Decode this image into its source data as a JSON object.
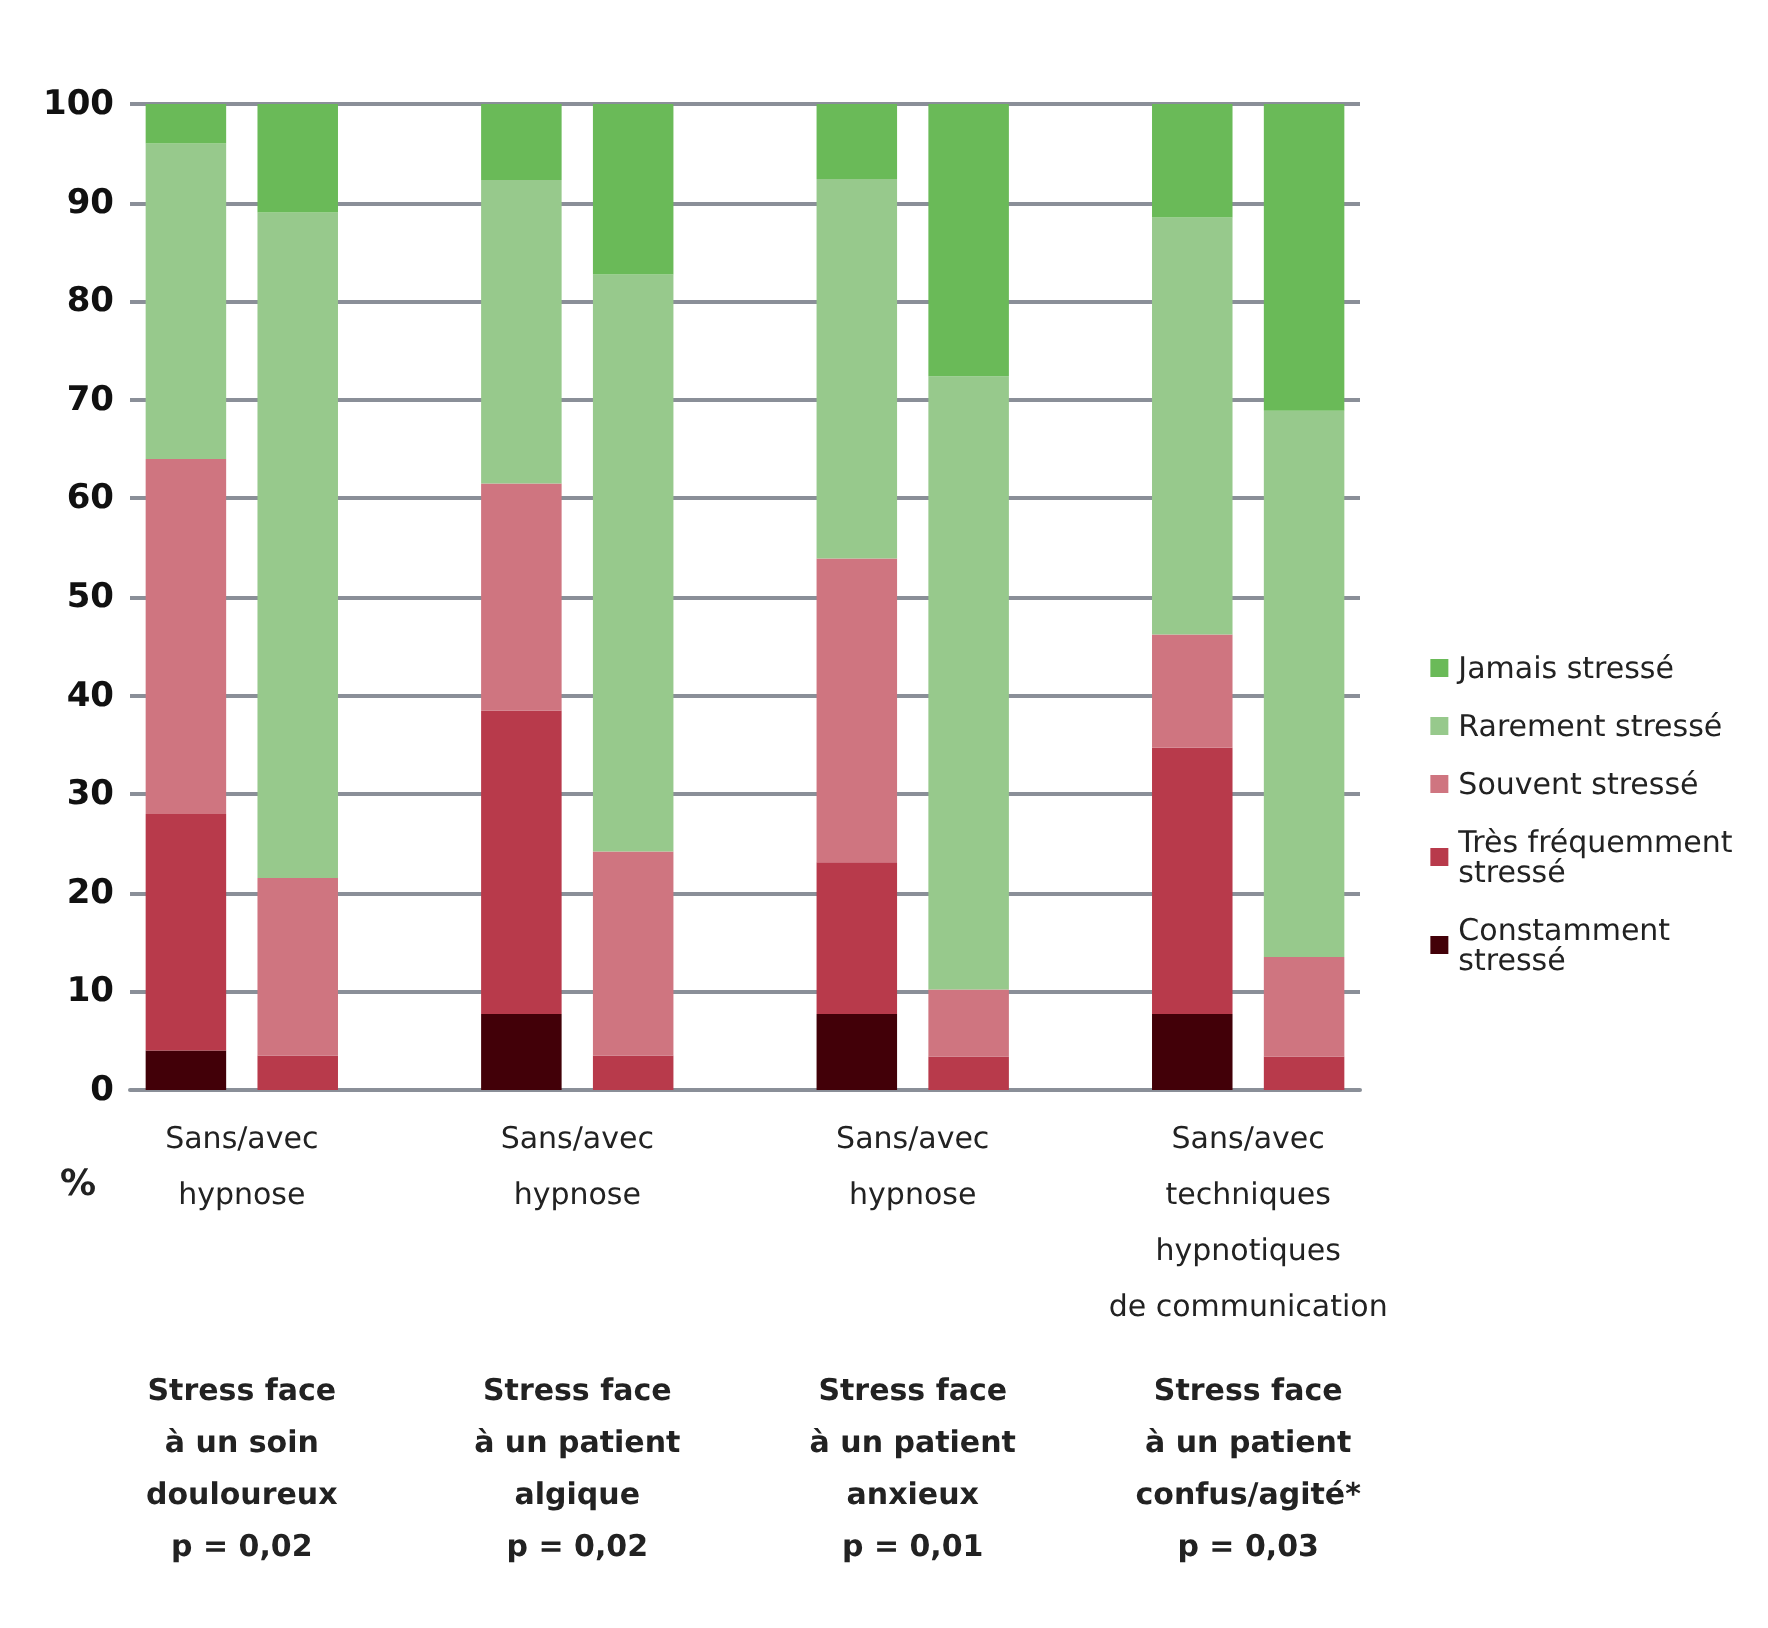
{
  "chart_data": {
    "type": "bar",
    "stacked": true,
    "ylabel": "%",
    "categories": [
      null,
      null,
      null,
      null,
      null,
      null,
      null,
      null,
      null,
      null,
      null
    ],
    "series": [
      {
        "name": "Constamment stressé",
        "color": "#420008",
        "values": [
          4,
          0,
          null,
          7.7,
          0,
          null,
          7.7,
          0,
          null,
          7.7,
          0
        ]
      },
      {
        "name": "Très fréquemment stressé",
        "color": "#b83a4b",
        "values": [
          24,
          3.5,
          null,
          30.8,
          3.5,
          null,
          15.4,
          3.4,
          null,
          27,
          3.4
        ]
      },
      {
        "name": "Souvent stressé",
        "color": "#cf7580",
        "values": [
          36,
          18,
          null,
          23,
          20.7,
          null,
          30.8,
          6.8,
          null,
          11.5,
          10.1
        ]
      },
      {
        "name": "Rarement stressé",
        "color": "#97c98c",
        "values": [
          32,
          67.5,
          null,
          30.8,
          58.5,
          null,
          38.5,
          62.2,
          null,
          42.3,
          55.4
        ]
      },
      {
        "name": "Jamais stressé",
        "color": "#6aba58",
        "values": [
          4,
          11,
          null,
          7.7,
          17.3,
          null,
          7.6,
          27.6,
          null,
          11.5,
          31.1
        ]
      }
    ],
    "ylim": [
      0,
      100
    ],
    "yticks": [
      0,
      10,
      20,
      30,
      40,
      50,
      60,
      70,
      80,
      90,
      100
    ],
    "grid": "y",
    "legend": "right",
    "annotations": [
      "Sans/avec\nhypnose",
      "Sans/avec\nhypnose",
      "Sans/avec\nhypnose",
      "Sans/avec\ntechniques\nhypnotiques\nde communication",
      "Stress face\nà un soin\ndouloureux\np = 0,02",
      "Stress face\nà un patient\nalgique\np = 0,02",
      "Stress face\nà un patient\nanxieux\np = 0,01",
      "Stress face\nà un patient\nconfus/agité*\np = 0,03"
    ]
  }
}
